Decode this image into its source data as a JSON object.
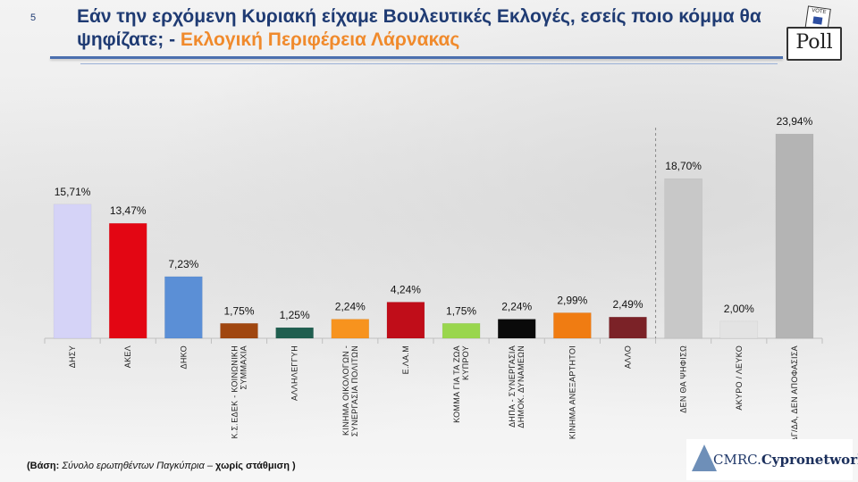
{
  "page_number": "5",
  "title_main": "Εάν την ερχόμενη Κυριακή είχαμε Βουλευτικές Εκλογές, εσείς ποιο κόμμα θα ψηφίζατε; -",
  "title_sub": "Εκλογική Περιφέρεια Λάρνακας",
  "poll_logo": {
    "label": "Poll",
    "card_text": "VOTE",
    "icon": "ballot-box-icon"
  },
  "footnote": {
    "prefix": "(Βάση:",
    "italic": "Σύνολο ερωτηθέντων Παγκύπρια –",
    "bold": "χωρίς στάθμιση )"
  },
  "brand": {
    "cmrc": "CMRC.",
    "network": "Cypronetwork"
  },
  "chart_data": {
    "type": "bar",
    "ylim": [
      0,
      25
    ],
    "categories": [
      "ΔΗΣΥ",
      "ΑΚΕΛ",
      "ΔΗΚΟ",
      "Κ.Σ.ΕΔΕΚ - ΚΟΙΝΩΝΙΚΗ ΣΥΜΜΑΧΙΑ",
      "ΑΛΛΗΛΕΓΓΥΗ",
      "ΚΙΝΗΜΑ ΟΙΚΟΛΟΓΩΝ - ΣΥΝΕΡΓΑΣΙΑ ΠΟΛΙΤΩΝ",
      "Ε.ΛΑ.Μ",
      "ΚΟΜΜΑ ΓΙΑ ΤΑ ΖΩΑ ΚΥΠΡΟΥ",
      "ΔΗΠΑ - ΣΥΝΕΡΓΑΣΙΑ ΔΗΜΟΚ. ΔΥΝΑΜΕΩΝ",
      "ΚΙΝΗΜΑ ΑΝΕΞΑΡΤΗΤΟΙ",
      "ΑΛΛΟ",
      "ΔΕΝ ΘΑ ΨΗΦΙΣΩ",
      "ΑΚΥΡΟ / ΛΕΥΚΟ",
      "ΔΓ/ΔΑ, ΔΕΝ ΑΠΟΦΑΣΙΣΑ"
    ],
    "values": [
      15.71,
      13.47,
      7.23,
      1.75,
      1.25,
      2.24,
      4.24,
      1.75,
      2.24,
      2.99,
      2.49,
      18.7,
      2.0,
      23.94
    ],
    "value_labels": [
      "15,71%",
      "13,47%",
      "7,23%",
      "1,75%",
      "1,25%",
      "2,24%",
      "4,24%",
      "1,75%",
      "2,24%",
      "2,99%",
      "2,49%",
      "18,70%",
      "2,00%",
      "23,94%"
    ],
    "colors": [
      "#d5d3f7",
      "#e30613",
      "#5b8fd6",
      "#a0460f",
      "#1f5e4f",
      "#f7931e",
      "#c00d19",
      "#99d64d",
      "#0a0a0a",
      "#f07c12",
      "#7b2227",
      "#c8c8c8",
      "#e3e3e3",
      "#b4b4b4"
    ],
    "separator_after_index": 10
  }
}
